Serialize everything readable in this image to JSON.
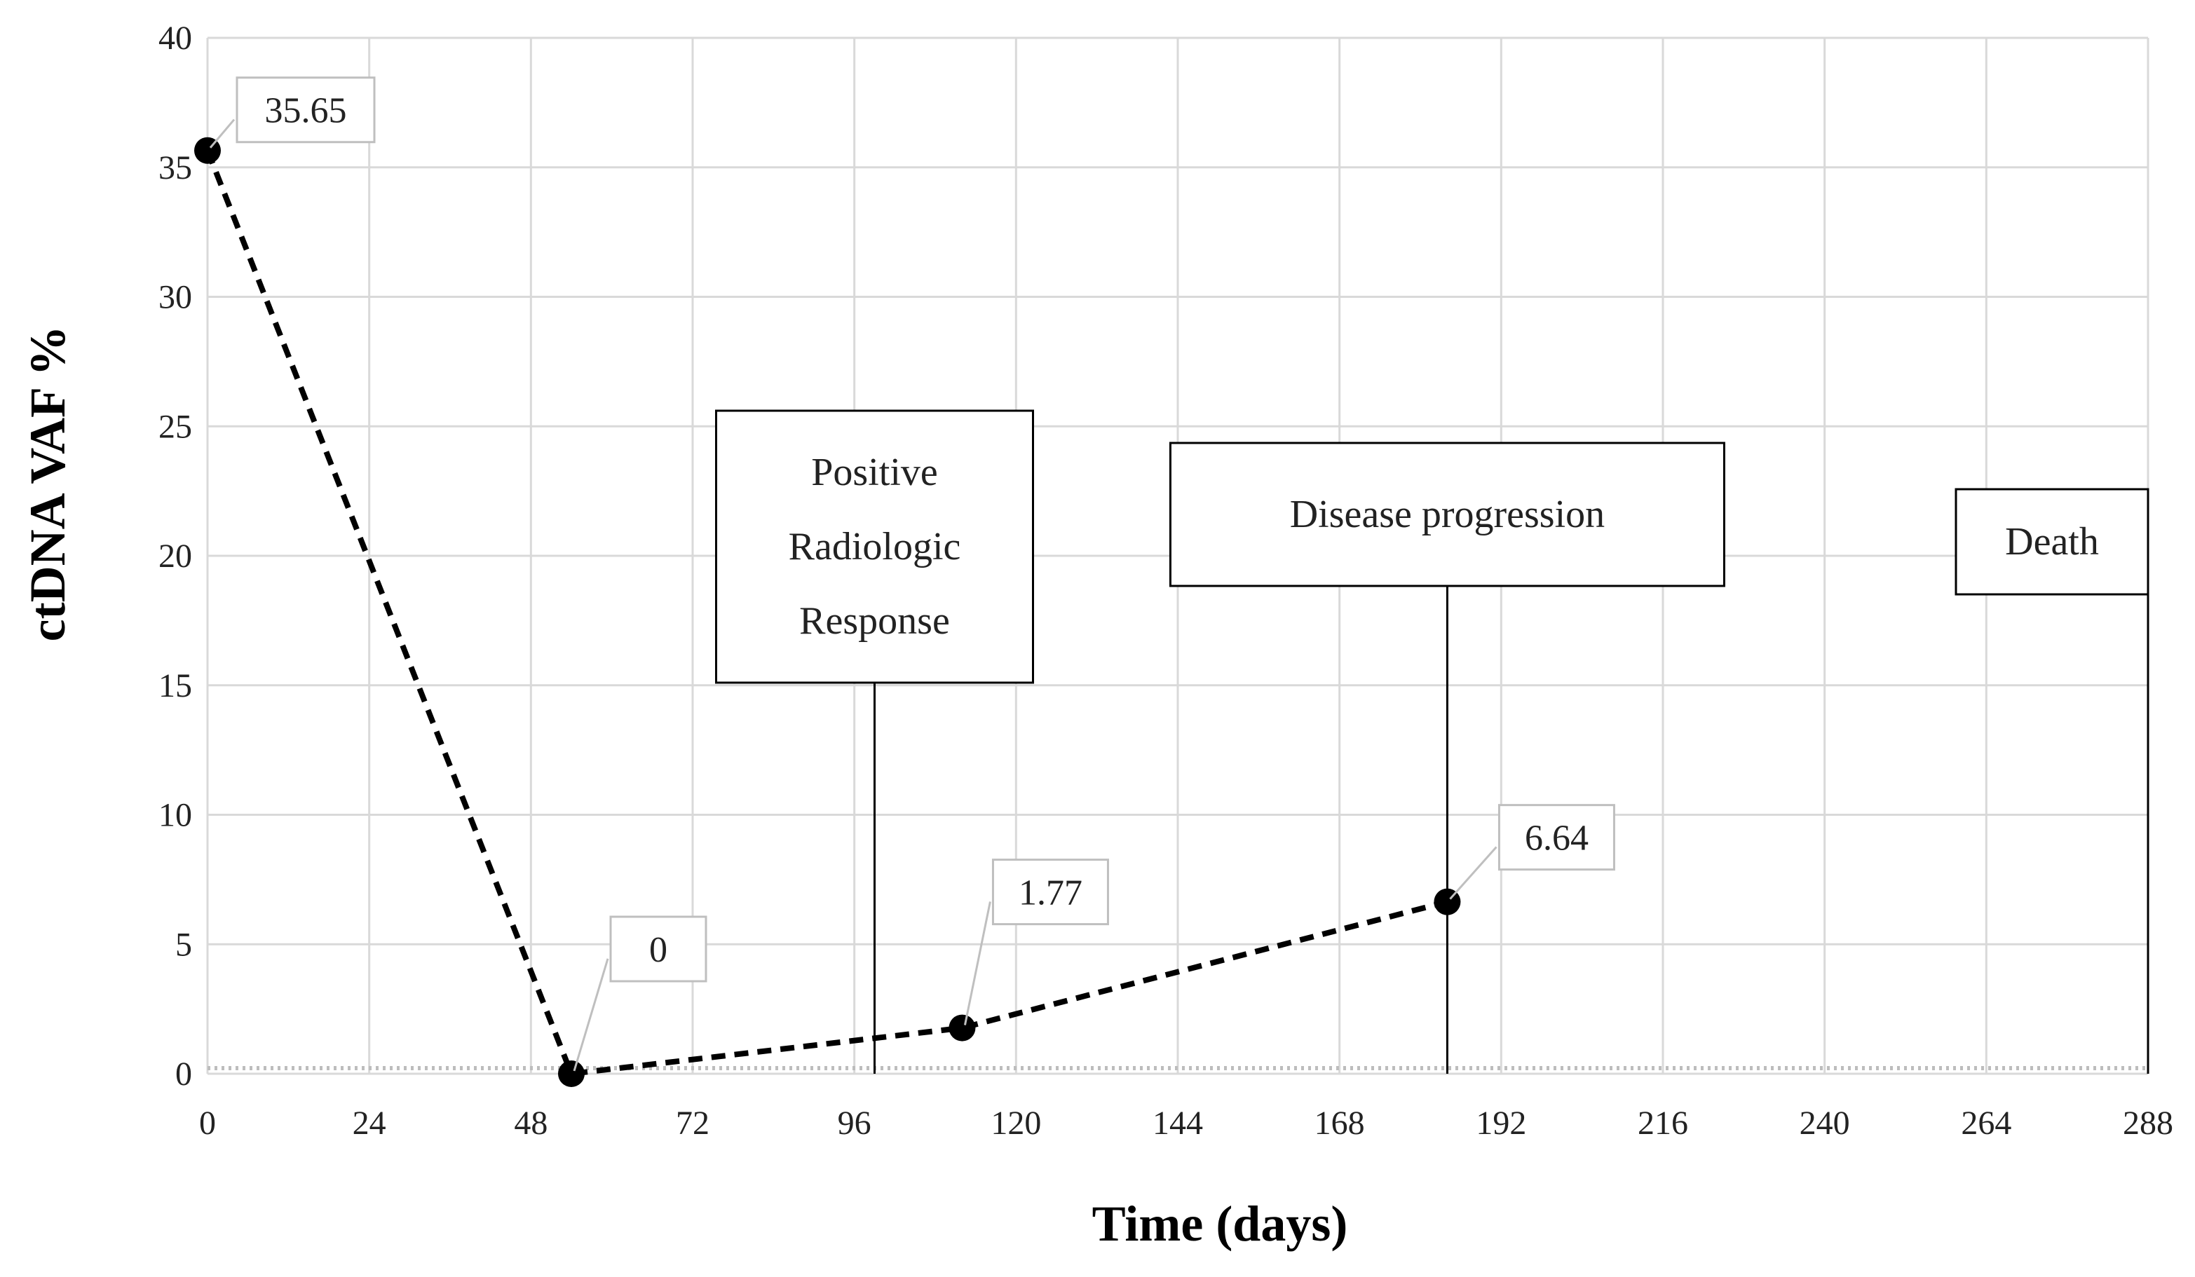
{
  "chart_data": {
    "type": "line",
    "title": "",
    "xlabel": "Time (days)",
    "ylabel": "ctDNA VAF %",
    "xlim": [
      0,
      288
    ],
    "ylim": [
      0,
      40
    ],
    "xticks": [
      0,
      24,
      48,
      72,
      96,
      120,
      144,
      168,
      192,
      216,
      240,
      264,
      288
    ],
    "yticks": [
      0,
      5,
      10,
      15,
      20,
      25,
      30,
      35,
      40
    ],
    "grid": true,
    "legend": "none",
    "series": [
      {
        "name": "ctDNA VAF %",
        "style": "dashed",
        "color": "#000000",
        "x": [
          0,
          54,
          112,
          184
        ],
        "values": [
          35.65,
          0,
          1.77,
          6.64
        ],
        "data_labels": [
          "35.65",
          "0",
          "1.77",
          "6.64"
        ]
      }
    ],
    "events": [
      {
        "name": "positive-radiologic-response",
        "x": 99,
        "lines": [
          "Positive",
          "Radiologic",
          "Response"
        ]
      },
      {
        "name": "disease-progression",
        "x": 184,
        "lines": [
          "Disease progression"
        ]
      },
      {
        "name": "death",
        "x": 288,
        "lines": [
          "Death"
        ]
      }
    ]
  }
}
